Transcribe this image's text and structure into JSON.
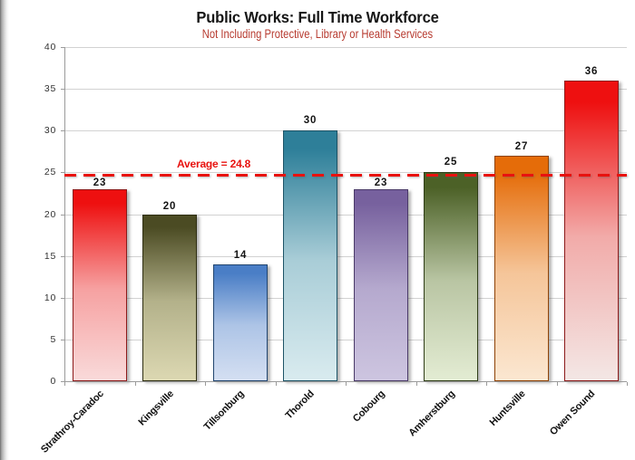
{
  "chart_data": {
    "type": "bar",
    "title": "Public Works: Full Time Workforce",
    "subtitle": "Not Including Protective, Library or Health Services",
    "categories": [
      "Strathroy-Caradoc",
      "Kingsville",
      "Tillsonburg",
      "Thorold",
      "Cobourg",
      "Amherstburg",
      "Huntsville",
      "Owen Sound"
    ],
    "values": [
      23,
      20,
      14,
      30,
      23,
      25,
      27,
      36
    ],
    "value_labels": [
      "23",
      "20",
      "14",
      "30",
      "23",
      "25",
      "27",
      "36"
    ],
    "bar_colors": [
      {
        "top": "#ee1010",
        "bottom": "#f9dada",
        "border": "#8c1a1a"
      },
      {
        "top": "#4b4b23",
        "bottom": "#dcd8b2",
        "border": "#2e2e12"
      },
      {
        "top": "#4a7ec6",
        "bottom": "#d4dff2",
        "border": "#21456f"
      },
      {
        "top": "#2e7f99",
        "bottom": "#d9ebef",
        "border": "#1d5366"
      },
      {
        "top": "#77619e",
        "bottom": "#cdc5e0",
        "border": "#4a3a68"
      },
      {
        "top": "#4c6127",
        "bottom": "#e3ecd3",
        "border": "#2f3d17"
      },
      {
        "top": "#e56c09",
        "bottom": "#fbe7d1",
        "border": "#8e4206"
      },
      {
        "top": "#ee1010",
        "bottom": "#f3e7e5",
        "border": "#8c1a1a"
      }
    ],
    "y_axis": {
      "min": 0,
      "max": 40,
      "step": 5,
      "tick_labels": [
        "0",
        "5",
        "10",
        "15",
        "20",
        "25",
        "30",
        "35",
        "40"
      ]
    },
    "x_axis_label": "",
    "y_axis_label": "",
    "average_line": {
      "value": 24.8,
      "label": "Average = 24.8",
      "color": "#e8120f"
    },
    "grid": true,
    "legend": "none",
    "colors": {
      "title": "#161616",
      "subtitle": "#b73b30",
      "axis_line": "#9b9b9b",
      "gridline": "#d2d2d2",
      "tick_label": "#333333",
      "value_label": "#141414",
      "category_label": "#111111",
      "average": "#e8120f"
    }
  }
}
